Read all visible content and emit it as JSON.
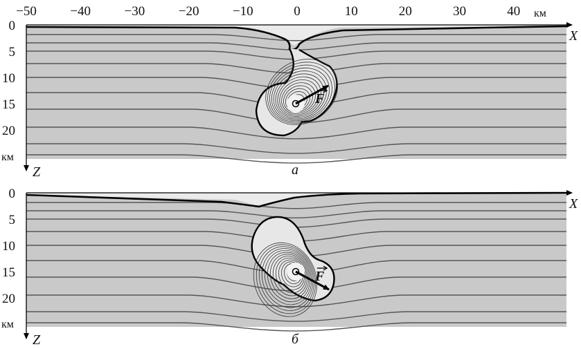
{
  "figure": {
    "x_axis": {
      "ticks": [
        "−50",
        "−40",
        "−30",
        "−20",
        "−10",
        "0",
        "10",
        "20",
        "30",
        "40"
      ],
      "unit": "км",
      "name": "X"
    },
    "z_axis": {
      "ticks": [
        "0",
        "5",
        "10",
        "15",
        "20"
      ],
      "unit": "км",
      "name": "Z"
    },
    "vector_label": "F",
    "panels": [
      {
        "id": "a",
        "letter": "а",
        "force_direction_deg": -30
      },
      {
        "id": "b",
        "letter": "б",
        "force_direction_deg": 30
      }
    ],
    "colors": {
      "background": "#c9c9c9",
      "contour": "#555555",
      "boundary": "#000000",
      "loop": "#333333",
      "light_zone": "#ececec"
    }
  }
}
